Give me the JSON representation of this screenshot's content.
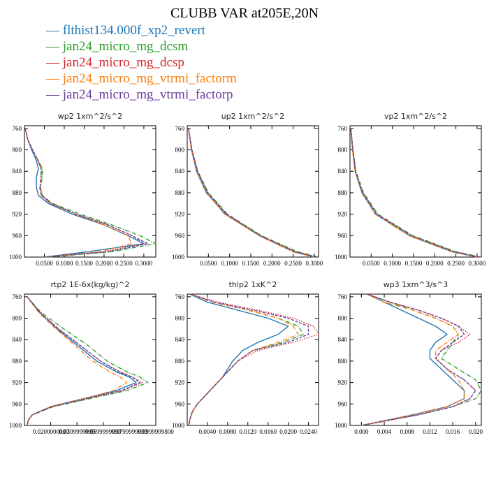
{
  "title": "CLUBB VAR at205E,20N",
  "legend": [
    {
      "name": "flthist134.000f_xp2_revert",
      "color": "#1f77b4",
      "dash": "solid"
    },
    {
      "name": "jan24_micro_mg_dcsm",
      "color": "#2ca02c",
      "dash": "dashdot"
    },
    {
      "name": "jan24_micro_mg_dcsp",
      "color": "#d62728",
      "dash": "dotted"
    },
    {
      "name": "jan24_micro_mg_vtrmi_factorm",
      "color": "#ff7f0e",
      "dash": "dashdot"
    },
    {
      "name": "jan24_micro_mg_vtrmi_factorp",
      "color": "#6a3d9a",
      "dash": "dashed"
    }
  ],
  "chart_data": [
    {
      "type": "line",
      "title": "wp2   1xm^2/s^2",
      "xlim": [
        0.0,
        0.33
      ],
      "ylim": [
        1000,
        755
      ],
      "yaxis": "pressure (reversed)",
      "xticks": [
        "0.0500",
        "0.1000",
        "0.1500",
        "0.2000",
        "0.2500",
        "0.3000"
      ],
      "xtick_values": [
        0.05,
        0.1,
        0.15,
        0.2,
        0.25,
        0.3
      ],
      "yticks": [
        "760",
        "800",
        "840",
        "880",
        "920",
        "960",
        "1000"
      ],
      "y": [
        760,
        780,
        800,
        820,
        835,
        850,
        870,
        885,
        900,
        920,
        940,
        960,
        975,
        990,
        1000
      ],
      "series": [
        {
          "name": "flthist134.000f_xp2_revert",
          "x": [
            0.002,
            0.008,
            0.018,
            0.03,
            0.035,
            0.03,
            0.03,
            0.035,
            0.06,
            0.12,
            0.2,
            0.26,
            0.3,
            0.16,
            0.05
          ]
        },
        {
          "name": "jan24_micro_mg_dcsm",
          "x": [
            0.002,
            0.008,
            0.02,
            0.035,
            0.045,
            0.045,
            0.04,
            0.045,
            0.07,
            0.14,
            0.22,
            0.29,
            0.33,
            0.22,
            0.06
          ]
        },
        {
          "name": "jan24_micro_mg_dcsp",
          "x": [
            0.002,
            0.008,
            0.02,
            0.034,
            0.042,
            0.042,
            0.04,
            0.043,
            0.068,
            0.13,
            0.21,
            0.27,
            0.3,
            0.2,
            0.05
          ]
        },
        {
          "name": "jan24_micro_mg_vtrmi_factorm",
          "x": [
            0.002,
            0.008,
            0.02,
            0.034,
            0.042,
            0.042,
            0.038,
            0.042,
            0.065,
            0.13,
            0.2,
            0.26,
            0.27,
            0.19,
            0.05
          ]
        },
        {
          "name": "jan24_micro_mg_vtrmi_factorp",
          "x": [
            0.002,
            0.008,
            0.02,
            0.034,
            0.042,
            0.042,
            0.04,
            0.043,
            0.067,
            0.13,
            0.21,
            0.27,
            0.31,
            0.21,
            0.05
          ]
        }
      ]
    },
    {
      "type": "line",
      "title": "up2   1xm^2/s^2",
      "xlim": [
        0.0,
        0.31
      ],
      "ylim": [
        1000,
        755
      ],
      "yaxis": "pressure (reversed)",
      "xticks": [
        "0.0500",
        "0.1000",
        "0.1500",
        "0.2000",
        "0.2500",
        "0.3000"
      ],
      "xtick_values": [
        0.05,
        0.1,
        0.15,
        0.2,
        0.25,
        0.3
      ],
      "yticks": [
        "760",
        "800",
        "840",
        "880",
        "920",
        "960",
        "1000"
      ],
      "y": [
        760,
        800,
        840,
        880,
        920,
        960,
        990,
        1000
      ],
      "series": [
        {
          "name": "flthist134.000f_xp2_revert",
          "x": [
            0.003,
            0.01,
            0.022,
            0.045,
            0.09,
            0.17,
            0.25,
            0.3
          ]
        },
        {
          "name": "jan24_micro_mg_dcsm",
          "x": [
            0.003,
            0.011,
            0.025,
            0.05,
            0.095,
            0.175,
            0.26,
            0.31
          ]
        },
        {
          "name": "jan24_micro_mg_dcsp",
          "x": [
            0.003,
            0.011,
            0.024,
            0.048,
            0.093,
            0.173,
            0.255,
            0.305
          ]
        },
        {
          "name": "jan24_micro_mg_vtrmi_factorm",
          "x": [
            0.003,
            0.01,
            0.023,
            0.046,
            0.088,
            0.17,
            0.25,
            0.3
          ]
        },
        {
          "name": "jan24_micro_mg_vtrmi_factorp",
          "x": [
            0.003,
            0.011,
            0.024,
            0.048,
            0.093,
            0.173,
            0.255,
            0.305
          ]
        }
      ]
    },
    {
      "type": "line",
      "title": "vp2   1xm^2/s^2",
      "xlim": [
        0.0,
        0.31
      ],
      "ylim": [
        1000,
        755
      ],
      "yaxis": "pressure (reversed)",
      "xticks": [
        "0.0500",
        "0.1000",
        "0.1500",
        "0.2000",
        "0.2500",
        "0.3000"
      ],
      "xtick_values": [
        0.05,
        0.1,
        0.15,
        0.2,
        0.25,
        0.3
      ],
      "yticks": [
        "760",
        "800",
        "840",
        "880",
        "920",
        "960",
        "1000"
      ],
      "y": [
        760,
        800,
        840,
        880,
        920,
        960,
        990,
        1000
      ],
      "series": [
        {
          "name": "flthist134.000f_xp2_revert",
          "x": [
            0.002,
            0.006,
            0.012,
            0.028,
            0.06,
            0.14,
            0.24,
            0.3
          ]
        },
        {
          "name": "jan24_micro_mg_dcsm",
          "x": [
            0.002,
            0.007,
            0.014,
            0.032,
            0.066,
            0.148,
            0.25,
            0.31
          ]
        },
        {
          "name": "jan24_micro_mg_dcsp",
          "x": [
            0.002,
            0.007,
            0.013,
            0.03,
            0.063,
            0.145,
            0.245,
            0.305
          ]
        },
        {
          "name": "jan24_micro_mg_vtrmi_factorm",
          "x": [
            0.002,
            0.006,
            0.012,
            0.029,
            0.06,
            0.14,
            0.24,
            0.3
          ]
        },
        {
          "name": "jan24_micro_mg_vtrmi_factorp",
          "x": [
            0.002,
            0.007,
            0.013,
            0.03,
            0.063,
            0.145,
            0.245,
            0.305
          ]
        }
      ]
    },
    {
      "type": "line",
      "title": "rtp2   1E-6x(kg/kg)^2",
      "xlim": [
        0.0,
        0.1
      ],
      "ylim": [
        1000,
        755
      ],
      "yaxis": "pressure (reversed)",
      "xticks": [
        "0.0200000000",
        "0.0399999999",
        "0.0599999999",
        "0.0799999999",
        "0.0999999800"
      ],
      "xtick_values": [
        0.02,
        0.04,
        0.06,
        0.08,
        0.1
      ],
      "yticks": [
        "760",
        "800",
        "840",
        "880",
        "920",
        "960",
        "1000"
      ],
      "y": [
        760,
        790,
        820,
        850,
        880,
        900,
        910,
        920,
        935,
        950,
        965,
        980,
        990,
        1000
      ],
      "series": [
        {
          "name": "flthist134.000f_xp2_revert",
          "x": [
            0.002,
            0.012,
            0.025,
            0.04,
            0.055,
            0.07,
            0.08,
            0.085,
            0.07,
            0.045,
            0.02,
            0.006,
            0.003,
            0.002
          ]
        },
        {
          "name": "jan24_micro_mg_dcsm",
          "x": [
            0.002,
            0.013,
            0.03,
            0.048,
            0.063,
            0.078,
            0.088,
            0.094,
            0.078,
            0.05,
            0.022,
            0.006,
            0.003,
            0.002
          ]
        },
        {
          "name": "jan24_micro_mg_dcsp",
          "x": [
            0.002,
            0.012,
            0.026,
            0.042,
            0.058,
            0.073,
            0.083,
            0.09,
            0.075,
            0.048,
            0.021,
            0.006,
            0.003,
            0.002
          ]
        },
        {
          "name": "jan24_micro_mg_vtrmi_factorm",
          "x": [
            0.002,
            0.011,
            0.024,
            0.038,
            0.052,
            0.065,
            0.073,
            0.078,
            0.068,
            0.045,
            0.02,
            0.006,
            0.003,
            0.002
          ]
        },
        {
          "name": "jan24_micro_mg_vtrmi_factorp",
          "x": [
            0.002,
            0.012,
            0.026,
            0.042,
            0.058,
            0.072,
            0.082,
            0.088,
            0.074,
            0.047,
            0.021,
            0.006,
            0.003,
            0.002
          ]
        }
      ]
    },
    {
      "type": "line",
      "title": "thlp2   1xK^2",
      "xlim": [
        0.0,
        0.026
      ],
      "ylim": [
        1000,
        755
      ],
      "yaxis": "pressure (reversed)",
      "xticks": [
        "0.0040",
        "0.0080",
        "0.0120",
        "0.0160",
        "0.0200",
        "0.0240"
      ],
      "xtick_values": [
        0.004,
        0.008,
        0.012,
        0.016,
        0.02,
        0.024
      ],
      "yticks": [
        "760",
        "800",
        "840",
        "880",
        "920",
        "960",
        "1000"
      ],
      "y": [
        755,
        770,
        785,
        800,
        815,
        830,
        845,
        860,
        880,
        910,
        940,
        960,
        975,
        990,
        1000
      ],
      "series": [
        {
          "name": "flthist134.000f_xp2_revert",
          "x": [
            0.0005,
            0.004,
            0.01,
            0.016,
            0.02,
            0.018,
            0.014,
            0.011,
            0.009,
            0.007,
            0.004,
            0.002,
            0.001,
            0.0005,
            0.0003
          ]
        },
        {
          "name": "jan24_micro_mg_dcsm",
          "x": [
            0.0005,
            0.005,
            0.012,
            0.018,
            0.022,
            0.023,
            0.019,
            0.013,
            0.01,
            0.007,
            0.004,
            0.002,
            0.001,
            0.0005,
            0.0003
          ]
        },
        {
          "name": "jan24_micro_mg_dcsp",
          "x": [
            0.0005,
            0.006,
            0.014,
            0.021,
            0.025,
            0.026,
            0.021,
            0.014,
            0.01,
            0.007,
            0.004,
            0.002,
            0.001,
            0.0005,
            0.0003
          ]
        },
        {
          "name": "jan24_micro_mg_vtrmi_factorm",
          "x": [
            0.0005,
            0.005,
            0.012,
            0.018,
            0.021,
            0.022,
            0.018,
            0.013,
            0.01,
            0.007,
            0.004,
            0.002,
            0.001,
            0.0005,
            0.0003
          ]
        },
        {
          "name": "jan24_micro_mg_vtrmi_factorp",
          "x": [
            0.0005,
            0.0055,
            0.013,
            0.02,
            0.024,
            0.024,
            0.02,
            0.013,
            0.01,
            0.007,
            0.004,
            0.002,
            0.001,
            0.0005,
            0.0003
          ]
        }
      ]
    },
    {
      "type": "line",
      "title": "wp3   1xm^3/s^3",
      "xlim": [
        -0.002,
        0.021
      ],
      "ylim": [
        1000,
        755
      ],
      "yaxis": "pressure (reversed)",
      "xticks": [
        "0.000",
        "0.004",
        "0.008",
        "0.012",
        "0.016",
        "0.020"
      ],
      "xtick_values": [
        0.0,
        0.004,
        0.008,
        0.012,
        0.016,
        0.02
      ],
      "yticks": [
        "760",
        "800",
        "840",
        "880",
        "920",
        "960",
        "1000"
      ],
      "y": [
        755,
        770,
        785,
        800,
        815,
        830,
        845,
        860,
        875,
        895,
        915,
        935,
        950,
        965,
        980,
        1000
      ],
      "series": [
        {
          "name": "flthist134.000f_xp2_revert",
          "x": [
            0.001,
            0.004,
            0.007,
            0.01,
            0.013,
            0.015,
            0.013,
            0.012,
            0.012,
            0.014,
            0.016,
            0.018,
            0.018,
            0.015,
            0.009,
            0.0
          ]
        },
        {
          "name": "jan24_micro_mg_dcsm",
          "x": [
            0.001,
            0.005,
            0.009,
            0.013,
            0.016,
            0.017,
            0.016,
            0.015,
            0.014,
            0.017,
            0.02,
            0.021,
            0.02,
            0.016,
            0.01,
            0.0
          ]
        },
        {
          "name": "jan24_micro_mg_dcsp",
          "x": [
            0.001,
            0.005,
            0.01,
            0.014,
            0.017,
            0.019,
            0.017,
            0.014,
            0.013,
            0.015,
            0.018,
            0.02,
            0.019,
            0.016,
            0.01,
            0.0
          ]
        },
        {
          "name": "jan24_micro_mg_vtrmi_factorm",
          "x": [
            0.001,
            0.004,
            0.009,
            0.013,
            0.016,
            0.017,
            0.015,
            0.013,
            0.013,
            0.015,
            0.017,
            0.018,
            0.018,
            0.015,
            0.009,
            0.0
          ]
        },
        {
          "name": "jan24_micro_mg_vtrmi_factorp",
          "x": [
            0.001,
            0.005,
            0.01,
            0.014,
            0.017,
            0.018,
            0.016,
            0.014,
            0.013,
            0.015,
            0.018,
            0.02,
            0.019,
            0.016,
            0.01,
            0.0
          ]
        }
      ]
    }
  ]
}
